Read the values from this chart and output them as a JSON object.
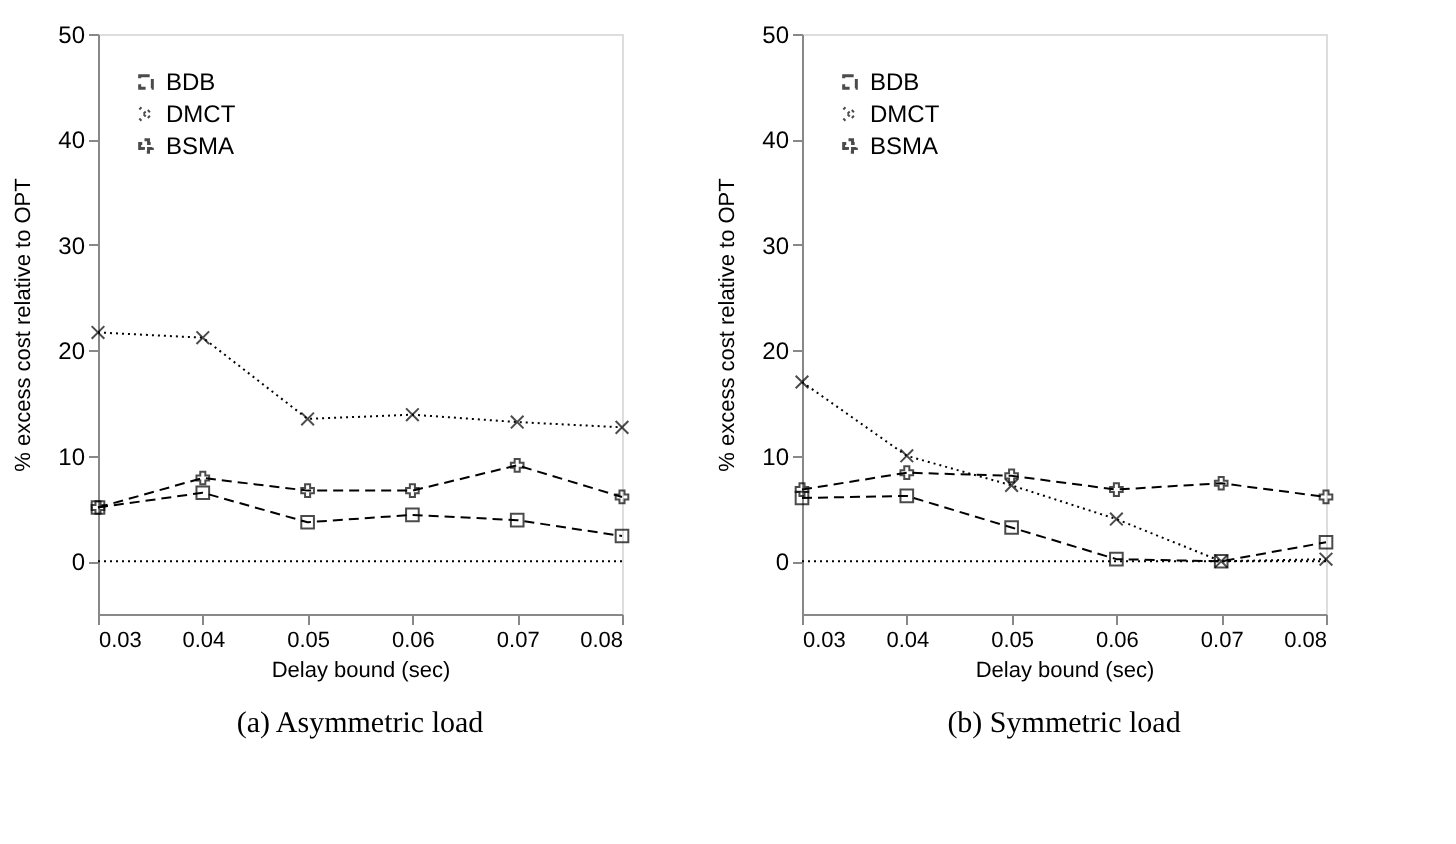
{
  "chart_data": [
    {
      "type": "line",
      "title": "(a) Asymmetric load",
      "xlabel": "Delay bound (sec)",
      "ylabel": "% excess cost relative to OPT",
      "x": [
        0.03,
        0.04,
        0.05,
        0.06,
        0.07,
        0.08
      ],
      "series": [
        {
          "name": "BDB",
          "color": "#000000",
          "marker": "square",
          "line_style": "dashed",
          "values": [
            5.1,
            6.5,
            3.7,
            4.4,
            3.9,
            2.4
          ]
        },
        {
          "name": "DMCT",
          "color": "#000000",
          "marker": "cross",
          "line_style": "dotted",
          "values": [
            21.7,
            21.2,
            13.5,
            13.9,
            13.2,
            12.7
          ]
        },
        {
          "name": "BSMA",
          "color": "#000000",
          "marker": "plus",
          "line_style": "dashed",
          "values": [
            5.1,
            7.9,
            6.7,
            6.7,
            9.1,
            6.1
          ]
        }
      ],
      "xlim": [
        0.03,
        0.08
      ],
      "xticks": [
        0.03,
        0.04,
        0.05,
        0.06,
        0.07,
        0.08
      ],
      "ylim": [
        -5,
        50
      ],
      "yticks": [
        0,
        10,
        20,
        30,
        40,
        50
      ],
      "ref_lines": [
        {
          "axis": "y",
          "value": 0,
          "line_style": "dotted",
          "color": "#000000"
        }
      ],
      "legend": "top left",
      "grid": false
    },
    {
      "type": "line",
      "title": "(b) Symmetric load",
      "xlabel": "Delay bound (sec)",
      "ylabel": "% excess cost relative to OPT",
      "x": [
        0.03,
        0.04,
        0.05,
        0.06,
        0.07,
        0.08
      ],
      "series": [
        {
          "name": "BDB",
          "color": "#000000",
          "marker": "square",
          "line_style": "dashed",
          "values": [
            6.0,
            6.2,
            3.2,
            0.2,
            0.0,
            1.8
          ]
        },
        {
          "name": "DMCT",
          "color": "#000000",
          "marker": "cross",
          "line_style": "dotted",
          "values": [
            17.0,
            10.0,
            7.2,
            4.0,
            0.0,
            0.2
          ]
        },
        {
          "name": "BSMA",
          "color": "#000000",
          "marker": "plus",
          "line_style": "dashed",
          "values": [
            6.8,
            8.4,
            8.1,
            6.8,
            7.4,
            6.1
          ]
        }
      ],
      "xlim": [
        0.03,
        0.08
      ],
      "xticks": [
        0.03,
        0.04,
        0.05,
        0.06,
        0.07,
        0.08
      ],
      "ylim": [
        -5,
        50
      ],
      "yticks": [
        0,
        10,
        20,
        30,
        40,
        50
      ],
      "ref_lines": [
        {
          "axis": "y",
          "value": 0,
          "line_style": "dotted",
          "color": "#000000"
        }
      ],
      "legend": "top left",
      "grid": false
    }
  ]
}
